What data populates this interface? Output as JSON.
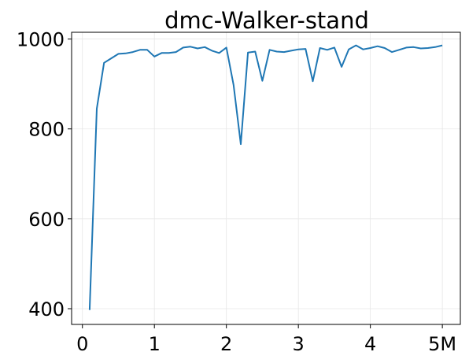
{
  "chart_data": {
    "type": "line",
    "title": "dmc-Walker-stand",
    "xlabel": "",
    "ylabel": "",
    "xlim": [
      -0.15,
      5.25
    ],
    "ylim": [
      365,
      1015
    ],
    "grid": true,
    "x_ticks": [
      {
        "value": 0,
        "label": "0"
      },
      {
        "value": 1,
        "label": "1"
      },
      {
        "value": 2,
        "label": "2"
      },
      {
        "value": 3,
        "label": "3"
      },
      {
        "value": 4,
        "label": "4"
      },
      {
        "value": 5,
        "label": "5M"
      }
    ],
    "y_ticks": [
      {
        "value": 400,
        "label": "400"
      },
      {
        "value": 600,
        "label": "600"
      },
      {
        "value": 800,
        "label": "800"
      },
      {
        "value": 1000,
        "label": "1000"
      }
    ],
    "series": [
      {
        "color": "#1f77b4",
        "x": [
          0.1,
          0.2,
          0.3,
          0.4,
          0.5,
          0.6,
          0.7,
          0.8,
          0.9,
          1.0,
          1.1,
          1.2,
          1.3,
          1.4,
          1.5,
          1.6,
          1.7,
          1.8,
          1.9,
          2.0,
          2.1,
          2.2,
          2.3,
          2.4,
          2.5,
          2.6,
          2.7,
          2.8,
          2.9,
          3.0,
          3.1,
          3.2,
          3.3,
          3.4,
          3.5,
          3.6,
          3.7,
          3.8,
          3.9,
          4.0,
          4.1,
          4.2,
          4.3,
          4.4,
          4.5,
          4.6,
          4.7,
          4.8,
          4.9,
          5.0
        ],
        "y": [
          397,
          845,
          947,
          957,
          967,
          968,
          971,
          976,
          976,
          961,
          969,
          969,
          971,
          981,
          983,
          979,
          982,
          974,
          969,
          981,
          898,
          766,
          970,
          972,
          907,
          976,
          972,
          971,
          974,
          977,
          978,
          906,
          980,
          976,
          981,
          938,
          977,
          986,
          977,
          980,
          984,
          980,
          971,
          976,
          981,
          982,
          979,
          980,
          982,
          986
        ]
      }
    ]
  }
}
